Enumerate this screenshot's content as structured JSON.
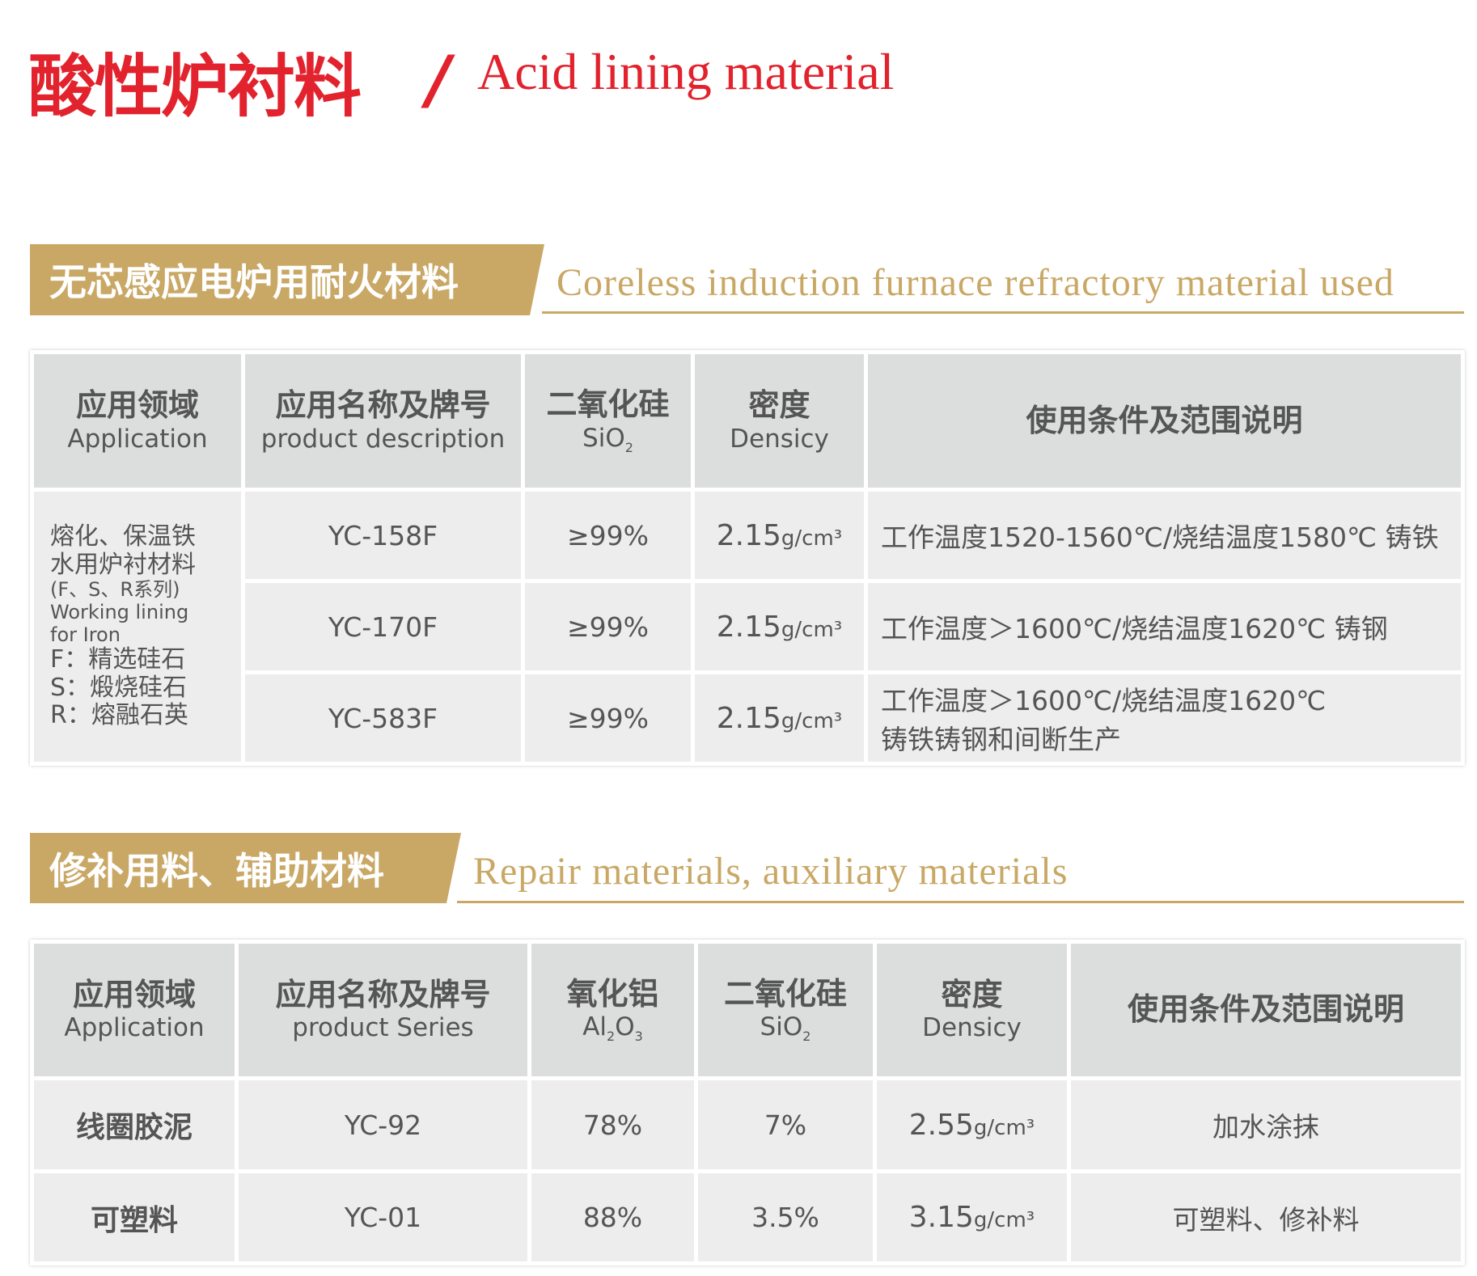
{
  "title": {
    "cn": "酸性炉衬料",
    "slash": "/",
    "en": "Acid lining material"
  },
  "colors": {
    "accent_red": "#e2232e",
    "gold": "#c9a866",
    "header_gray": "#dcdddd",
    "row_gray": "#ededed"
  },
  "section1": {
    "cn": "无芯感应电炉用耐火材料",
    "en": "Coreless induction furnace refractory material used",
    "headers": [
      {
        "cn": "应用领域",
        "en": "Application"
      },
      {
        "cn": "应用名称及牌号",
        "en": "product description"
      },
      {
        "cn": "二氧化硅",
        "en": "SiO",
        "sub": "2"
      },
      {
        "cn": "密度",
        "en": "Densicy"
      },
      {
        "cn": "使用条件及范围说明"
      }
    ],
    "application": {
      "lines": [
        "熔化、保温铁",
        "水用炉衬材料"
      ],
      "series": "(F、S、R系列)",
      "en1": "Working  lining",
      "en2": "for  Iron",
      "f": "F：精选硅石",
      "s": "S：煅烧硅石",
      "r": "R：熔融石英"
    },
    "rows": [
      {
        "product": "YC-158F",
        "sio2": "≥99%",
        "density": "2.15",
        "unit": "g/cm³",
        "desc": "工作温度1520-1560℃/烧结温度1580℃  铸铁"
      },
      {
        "product": "YC-170F",
        "sio2": "≥99%",
        "density": "2.15",
        "unit": "g/cm³",
        "desc": "工作温度＞1600℃/烧结温度1620℃    铸钢"
      },
      {
        "product": "YC-583F",
        "sio2": "≥99%",
        "density": "2.15",
        "unit": "g/cm³",
        "desc": "工作温度＞1600℃/烧结温度1620℃",
        "desc2": "铸铁铸钢和间断生产"
      }
    ]
  },
  "section2": {
    "cn": "修补用料、辅助材料",
    "en": "Repair materials, auxiliary materials",
    "headers": [
      {
        "cn": "应用领域",
        "en": "Application"
      },
      {
        "cn": "应用名称及牌号",
        "en": "product Series"
      },
      {
        "cn": "氧化铝",
        "en": "Al",
        "sub": "2",
        "en2": "O",
        "sub2": "3"
      },
      {
        "cn": "二氧化硅",
        "en": "SiO",
        "sub": "2"
      },
      {
        "cn": "密度",
        "en": "Densicy"
      },
      {
        "cn": "使用条件及范围说明"
      }
    ],
    "rows": [
      {
        "application": "线圈胶泥",
        "product": "YC-92",
        "al2o3": "78%",
        "sio2": "7%",
        "density": "2.55",
        "unit": "g/cm³",
        "desc": "加水涂抹"
      },
      {
        "application": "可塑料",
        "product": "YC-01",
        "al2o3": "88%",
        "sio2": "3.5%",
        "density": "3.15",
        "unit": "g/cm³",
        "desc": "可塑料、修补料"
      }
    ]
  }
}
